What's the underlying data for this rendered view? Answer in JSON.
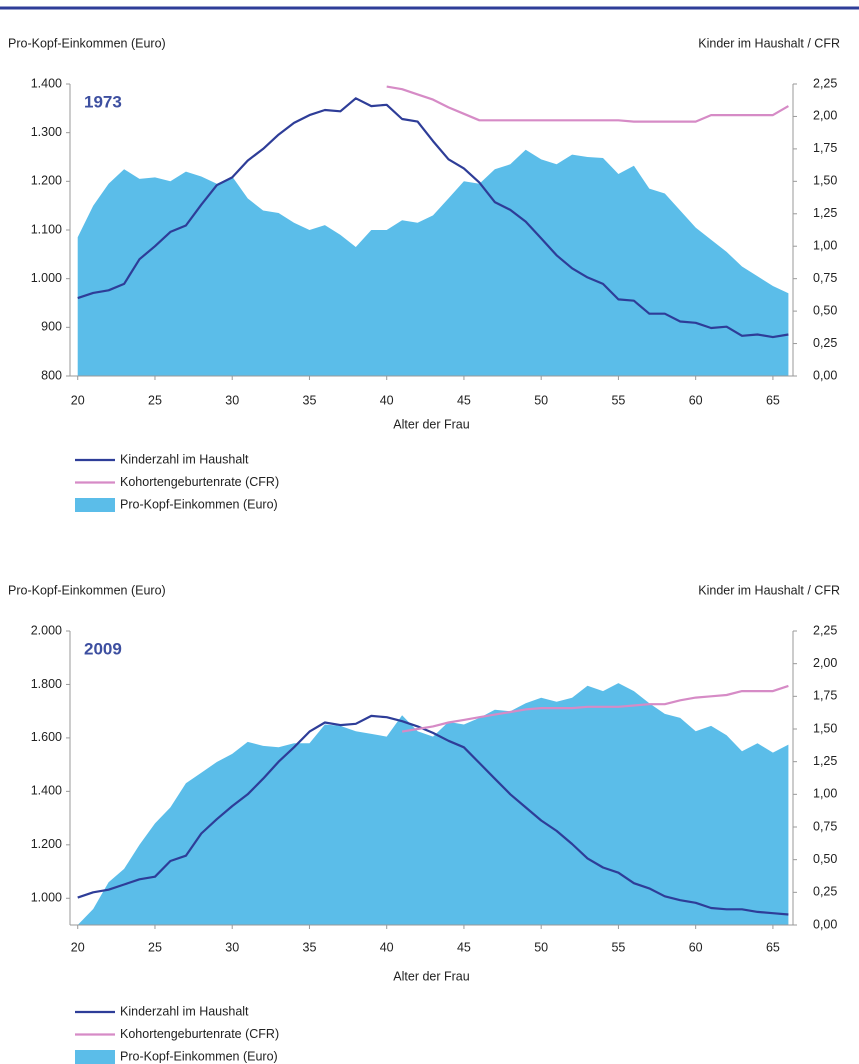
{
  "chart_data": [
    {
      "type": "line",
      "annotation": "1973",
      "y_label": "Pro-Kopf-Einkommen (Euro)",
      "y2_label": "Kinder im Haushalt / CFR",
      "x_label": "Alter der Frau",
      "x": [
        20,
        21,
        22,
        23,
        24,
        25,
        26,
        27,
        28,
        29,
        30,
        31,
        32,
        33,
        34,
        35,
        36,
        37,
        38,
        39,
        40,
        41,
        42,
        43,
        44,
        45,
        46,
        47,
        48,
        49,
        50,
        51,
        52,
        53,
        54,
        55,
        56,
        57,
        58,
        59,
        60,
        61,
        62,
        63,
        64,
        65,
        66
      ],
      "xlim": [
        19.5,
        66.3
      ],
      "xticks": [
        20,
        25,
        30,
        35,
        40,
        45,
        50,
        55,
        60,
        65
      ],
      "ylim": [
        800,
        1400
      ],
      "yticks": [
        {
          "value": 800,
          "label": "800"
        },
        {
          "value": 900,
          "label": "900"
        },
        {
          "value": 1000,
          "label": "1.000"
        },
        {
          "value": 1100,
          "label": "1.100"
        },
        {
          "value": 1200,
          "label": "1.200"
        },
        {
          "value": 1300,
          "label": "1.300"
        },
        {
          "value": 1400,
          "label": "1.400"
        }
      ],
      "y2lim": [
        0,
        2.25
      ],
      "y2ticks": [
        {
          "value": 0,
          "label": "0,00"
        },
        {
          "value": 0.25,
          "label": "0,25"
        },
        {
          "value": 0.5,
          "label": "0,50"
        },
        {
          "value": 0.75,
          "label": "0,75"
        },
        {
          "value": 1,
          "label": "1,00"
        },
        {
          "value": 1.25,
          "label": "1,25"
        },
        {
          "value": 1.5,
          "label": "1,50"
        },
        {
          "value": 1.75,
          "label": "1,75"
        },
        {
          "value": 2,
          "label": "2,00"
        },
        {
          "value": 2.25,
          "label": "2,25"
        }
      ],
      "series": [
        {
          "name": "Kinderzahl im Haushalt",
          "type": "line",
          "axis": "y2",
          "color": "#2e3d98",
          "values": [
            0.6,
            0.64,
            0.66,
            0.71,
            0.9,
            1.0,
            1.11,
            1.16,
            1.32,
            1.47,
            1.53,
            1.66,
            1.75,
            1.86,
            1.95,
            2.01,
            2.05,
            2.04,
            2.14,
            2.08,
            2.09,
            1.98,
            1.96,
            1.81,
            1.67,
            1.6,
            1.49,
            1.34,
            1.28,
            1.19,
            1.06,
            0.93,
            0.83,
            0.76,
            0.71,
            0.59,
            0.58,
            0.48,
            0.48,
            0.42,
            0.41,
            0.37,
            0.38,
            0.31,
            0.32,
            0.3,
            0.32
          ]
        },
        {
          "name": "Kohortengeburtenrate (CFR)",
          "type": "line",
          "axis": "y2",
          "color": "#d68bc6",
          "values": [
            null,
            null,
            null,
            null,
            null,
            null,
            null,
            null,
            null,
            null,
            null,
            null,
            null,
            null,
            null,
            null,
            null,
            null,
            null,
            null,
            2.23,
            2.21,
            2.17,
            2.13,
            2.07,
            2.02,
            1.97,
            1.97,
            1.97,
            1.97,
            1.97,
            1.97,
            1.97,
            1.97,
            1.97,
            1.97,
            1.96,
            1.96,
            1.96,
            1.96,
            1.96,
            2.01,
            2.01,
            2.01,
            2.01,
            2.01,
            2.08
          ]
        },
        {
          "name": "Pro-Kopf-Einkommen (Euro)",
          "type": "area",
          "color": "#5bbde9",
          "values": [
            1085,
            1150,
            1195,
            1225,
            1205,
            1208,
            1200,
            1220,
            1210,
            1195,
            1210,
            1165,
            1140,
            1135,
            1115,
            1100,
            1110,
            1090,
            1065,
            1100,
            1100,
            1120,
            1115,
            1130,
            1165,
            1200,
            1195,
            1225,
            1235,
            1265,
            1245,
            1235,
            1255,
            1250,
            1248,
            1215,
            1232,
            1185,
            1175,
            1140,
            1105,
            1080,
            1055,
            1025,
            1005,
            985,
            970
          ]
        }
      ]
    },
    {
      "type": "line",
      "annotation": "2009",
      "y_label": "Pro-Kopf-Einkommen (Euro)",
      "y2_label": "Kinder im Haushalt / CFR",
      "x_label": "Alter der Frau",
      "x": [
        20,
        21,
        22,
        23,
        24,
        25,
        26,
        27,
        28,
        29,
        30,
        31,
        32,
        33,
        34,
        35,
        36,
        37,
        38,
        39,
        40,
        41,
        42,
        43,
        44,
        45,
        46,
        47,
        48,
        49,
        50,
        51,
        52,
        53,
        54,
        55,
        56,
        57,
        58,
        59,
        60,
        61,
        62,
        63,
        64,
        65,
        66
      ],
      "xlim": [
        19.5,
        66.3
      ],
      "xticks": [
        20,
        25,
        30,
        35,
        40,
        45,
        50,
        55,
        60,
        65
      ],
      "ylim": [
        900,
        2000
      ],
      "yticks": [
        {
          "value": 1000,
          "label": "1.000"
        },
        {
          "value": 1200,
          "label": "1.200"
        },
        {
          "value": 1400,
          "label": "1.400"
        },
        {
          "value": 1600,
          "label": "1.600"
        },
        {
          "value": 1800,
          "label": "1.800"
        },
        {
          "value": 2000,
          "label": "2.000"
        }
      ],
      "y2lim": [
        0,
        2.25
      ],
      "y2ticks": [
        {
          "value": 0,
          "label": "0,00"
        },
        {
          "value": 0.25,
          "label": "0,25"
        },
        {
          "value": 0.5,
          "label": "0,50"
        },
        {
          "value": 0.75,
          "label": "0,75"
        },
        {
          "value": 1,
          "label": "1,00"
        },
        {
          "value": 1.25,
          "label": "1,25"
        },
        {
          "value": 1.5,
          "label": "1,50"
        },
        {
          "value": 1.75,
          "label": "1,75"
        },
        {
          "value": 2,
          "label": "2,00"
        },
        {
          "value": 2.25,
          "label": "2,25"
        }
      ],
      "series": [
        {
          "name": "Kinderzahl im Haushalt",
          "type": "line",
          "axis": "y2",
          "color": "#2e3d98",
          "values": [
            0.21,
            0.25,
            0.27,
            0.31,
            0.35,
            0.37,
            0.49,
            0.53,
            0.7,
            0.81,
            0.91,
            1.0,
            1.12,
            1.25,
            1.36,
            1.48,
            1.55,
            1.53,
            1.54,
            1.6,
            1.59,
            1.56,
            1.52,
            1.47,
            1.41,
            1.36,
            1.24,
            1.12,
            1.0,
            0.9,
            0.8,
            0.72,
            0.62,
            0.51,
            0.44,
            0.4,
            0.32,
            0.28,
            0.22,
            0.19,
            0.17,
            0.13,
            0.12,
            0.12,
            0.1,
            0.09,
            0.08
          ]
        },
        {
          "name": "Kohortengeburtenrate (CFR)",
          "type": "line",
          "axis": "y2",
          "color": "#d68bc6",
          "values": [
            null,
            null,
            null,
            null,
            null,
            null,
            null,
            null,
            null,
            null,
            null,
            null,
            null,
            null,
            null,
            null,
            null,
            null,
            null,
            null,
            null,
            1.48,
            1.5,
            1.52,
            1.55,
            1.57,
            1.59,
            1.61,
            1.63,
            1.65,
            1.66,
            1.66,
            1.66,
            1.67,
            1.67,
            1.67,
            1.68,
            1.69,
            1.69,
            1.72,
            1.74,
            1.75,
            1.76,
            1.79,
            1.79,
            1.79,
            1.83
          ]
        },
        {
          "name": "Pro-Kopf-Einkommen (Euro)",
          "type": "area",
          "color": "#5bbde9",
          "values": [
            900,
            960,
            1060,
            1110,
            1200,
            1280,
            1340,
            1430,
            1470,
            1510,
            1540,
            1585,
            1570,
            1565,
            1580,
            1580,
            1650,
            1645,
            1625,
            1615,
            1605,
            1685,
            1625,
            1605,
            1660,
            1650,
            1675,
            1705,
            1700,
            1730,
            1750,
            1735,
            1750,
            1795,
            1775,
            1805,
            1775,
            1730,
            1690,
            1675,
            1625,
            1645,
            1610,
            1550,
            1580,
            1545,
            1575
          ]
        }
      ]
    }
  ]
}
